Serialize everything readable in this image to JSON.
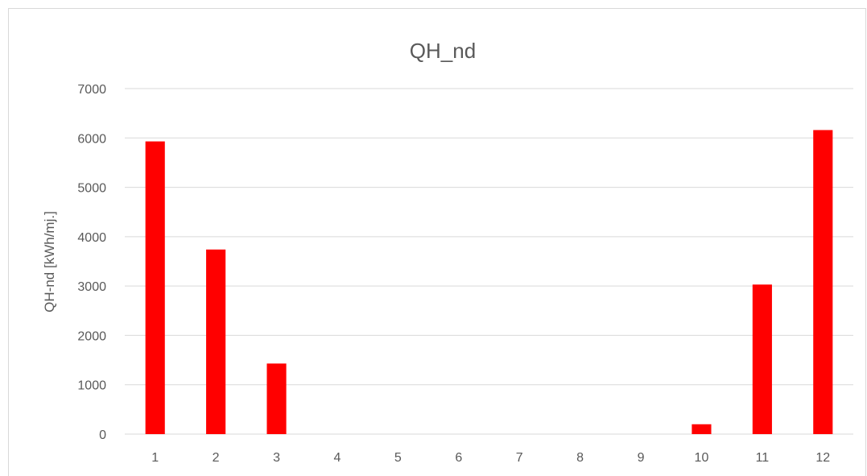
{
  "chart_data": {
    "type": "bar",
    "title": "QH_nd",
    "xlabel": "",
    "ylabel": "QH-nd [kWh/mj.]",
    "categories": [
      "1",
      "2",
      "3",
      "4",
      "5",
      "6",
      "7",
      "8",
      "9",
      "10",
      "11",
      "12"
    ],
    "series": [
      {
        "values": [
          5930,
          3740,
          1430,
          0,
          0,
          0,
          0,
          0,
          0,
          200,
          3030,
          6160
        ]
      }
    ],
    "ylim": [
      0,
      7000
    ],
    "yticks": [
      "0",
      "1000",
      "2000",
      "3000",
      "4000",
      "5000",
      "6000",
      "7000"
    ],
    "bar_color": "#ff0000",
    "grid": true,
    "legend": "none"
  }
}
